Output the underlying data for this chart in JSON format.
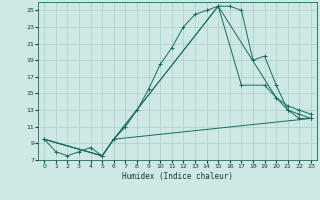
{
  "xlabel": "Humidex (Indice chaleur)",
  "bg_color": "#cde8e5",
  "grid_color": "#aacfcc",
  "line_color": "#1a6b60",
  "xlim": [
    -0.5,
    23.5
  ],
  "ylim": [
    7,
    26
  ],
  "xticks": [
    0,
    1,
    2,
    3,
    4,
    5,
    6,
    7,
    8,
    9,
    10,
    11,
    12,
    13,
    14,
    15,
    16,
    17,
    18,
    19,
    20,
    21,
    22,
    23
  ],
  "yticks": [
    7,
    9,
    11,
    13,
    15,
    17,
    19,
    21,
    23,
    25
  ],
  "curve1_x": [
    0,
    1,
    2,
    3,
    4,
    5,
    6,
    7,
    8,
    9,
    10,
    11,
    12,
    13,
    14,
    15,
    16,
    17,
    18,
    19,
    20,
    21,
    22,
    23
  ],
  "curve1_y": [
    9.5,
    8.0,
    7.5,
    8.0,
    8.5,
    7.5,
    9.5,
    11.0,
    13.0,
    15.5,
    18.5,
    20.5,
    23.0,
    24.5,
    25.0,
    25.5,
    25.5,
    25.0,
    19.0,
    19.5,
    16.0,
    13.0,
    12.0,
    12.0
  ],
  "curve2_x": [
    0,
    5,
    6,
    15,
    17,
    19,
    20,
    21,
    22,
    23
  ],
  "curve2_y": [
    9.5,
    7.5,
    9.5,
    25.5,
    16.0,
    16.0,
    14.5,
    13.0,
    12.5,
    12.0
  ],
  "curve3_x": [
    0,
    5,
    6,
    15,
    20,
    21,
    22,
    23
  ],
  "curve3_y": [
    9.5,
    7.5,
    9.5,
    25.5,
    14.5,
    13.5,
    13.0,
    12.5
  ],
  "curve4_x": [
    0,
    5,
    6,
    23
  ],
  "curve4_y": [
    9.5,
    7.5,
    9.5,
    12.0
  ]
}
